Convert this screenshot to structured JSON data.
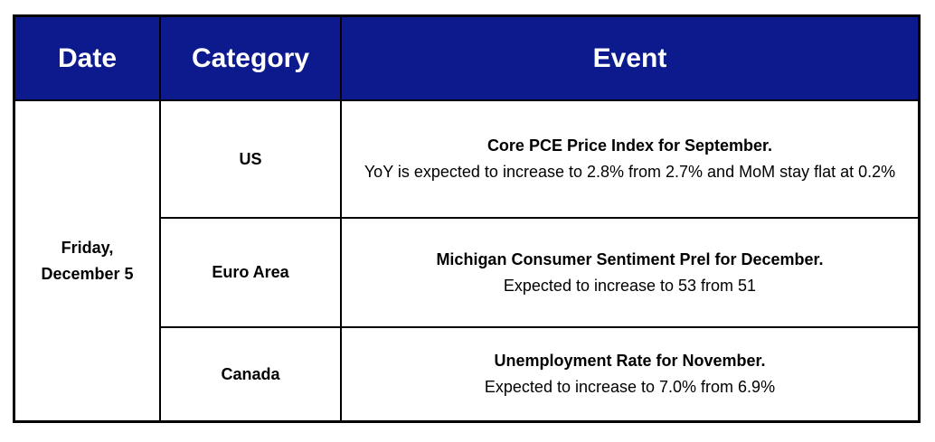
{
  "header": {
    "date": "Date",
    "category": "Category",
    "event": "Event"
  },
  "date": "Friday, December 5",
  "rows": [
    {
      "category": "US",
      "title": "Core PCE Price Index for September.",
      "description": "YoY is expected to increase to 2.8% from 2.7% and MoM stay flat at 0.2%"
    },
    {
      "category": "Euro Area",
      "title": "Michigan Consumer Sentiment Prel for December.",
      "description": "Expected to increase to 53 from 51"
    },
    {
      "category": "Canada",
      "title": "Unemployment Rate for November.",
      "description": "Expected to increase to 7.0% from 6.9%"
    }
  ],
  "colors": {
    "header_background": "#0d1a8e",
    "header_text": "#ffffff",
    "border": "#000000"
  }
}
